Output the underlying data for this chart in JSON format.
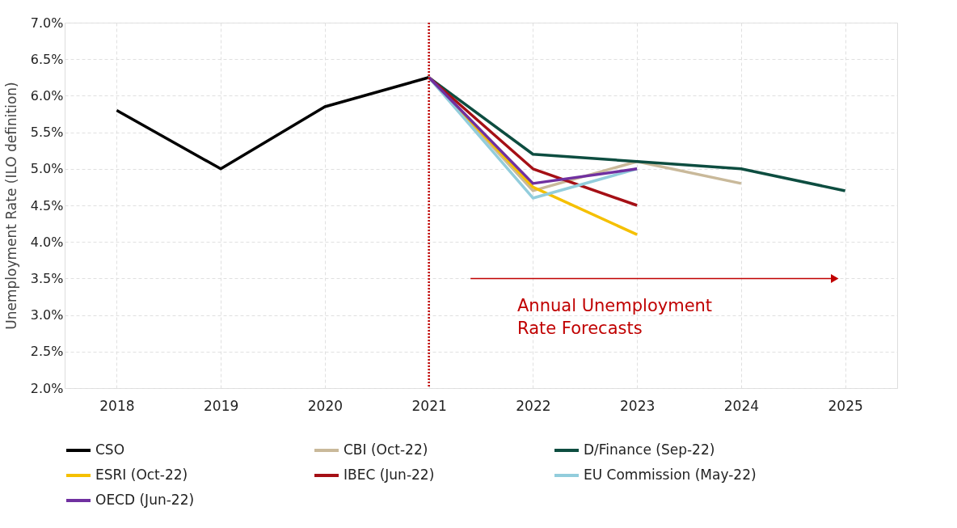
{
  "chart_data": {
    "type": "line",
    "ylabel": "Unemployment Rate (ILO definition)",
    "categories": [
      "2018",
      "2019",
      "2020",
      "2021",
      "2022",
      "2023",
      "2024",
      "2025"
    ],
    "series": [
      {
        "name": "CSO",
        "color": "#000000",
        "values": [
          5.8,
          5.0,
          5.85,
          6.25,
          null,
          null,
          null,
          null
        ]
      },
      {
        "name": "CBI (Oct-22)",
        "color": "#c9b99a",
        "values": [
          null,
          null,
          null,
          6.25,
          4.7,
          5.1,
          4.8,
          null
        ]
      },
      {
        "name": "D/Finance (Sep-22)",
        "color": "#0d4d40",
        "values": [
          null,
          null,
          null,
          6.25,
          5.2,
          5.1,
          5.0,
          4.7
        ]
      },
      {
        "name": "ESRI (Oct-22)",
        "color": "#f5c000",
        "values": [
          null,
          null,
          null,
          6.25,
          4.75,
          4.1,
          null,
          null
        ]
      },
      {
        "name": "IBEC (Jun-22)",
        "color": "#a50f15",
        "values": [
          null,
          null,
          null,
          6.25,
          5.0,
          4.5,
          null,
          null
        ]
      },
      {
        "name": "EU Commission (May-22)",
        "color": "#92cddc",
        "values": [
          null,
          null,
          null,
          6.25,
          4.6,
          5.0,
          null,
          null
        ]
      },
      {
        "name": "OECD (Jun-22)",
        "color": "#7030a0",
        "values": [
          null,
          null,
          null,
          6.25,
          4.8,
          5.0,
          null,
          null
        ]
      }
    ],
    "ylim": [
      2.0,
      7.0
    ],
    "yticks": [
      {
        "value": 2,
        "label": "2.0%"
      },
      {
        "value": 2.5,
        "label": "2.5%"
      },
      {
        "value": 3,
        "label": "3.0%"
      },
      {
        "value": 3.5,
        "label": "3.5%"
      },
      {
        "value": 4,
        "label": "4.0%"
      },
      {
        "value": 4.5,
        "label": "4.5%"
      },
      {
        "value": 5,
        "label": "5.0%"
      },
      {
        "value": 5.5,
        "label": "5.5%"
      },
      {
        "value": 6,
        "label": "6.0%"
      },
      {
        "value": 6.5,
        "label": "6.5%"
      },
      {
        "value": 7,
        "label": "7.0%"
      }
    ],
    "ref_lines": [
      {
        "axis": "x",
        "value": "2021",
        "color": "#c00000",
        "line_style": "dotted"
      }
    ],
    "annotations": [
      "Annual Unemployment\nRate Forecasts"
    ],
    "grid": true,
    "legend": "bottom",
    "marker": "none",
    "line_style": "solid"
  }
}
